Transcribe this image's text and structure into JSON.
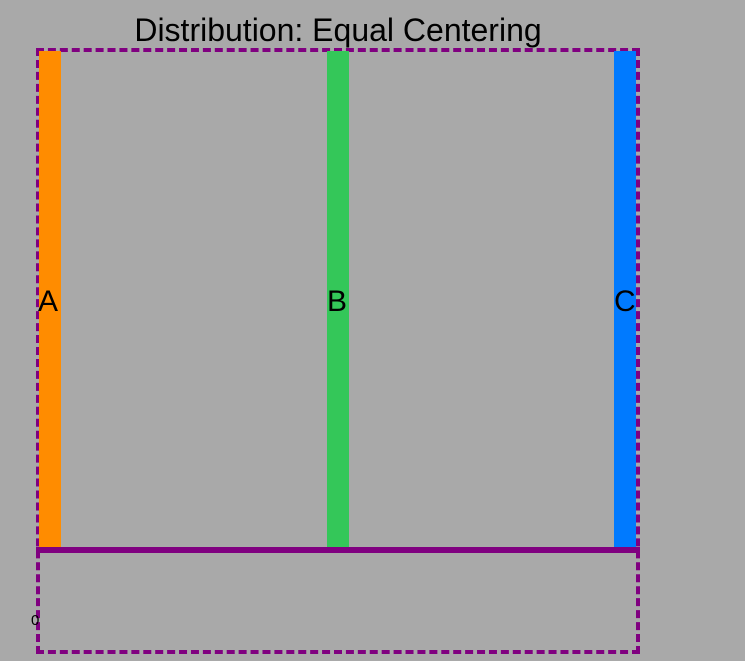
{
  "title": "Distribution: Equal Centering",
  "colors": {
    "background": "#a9a9a9",
    "frame": "#800080",
    "bar_a": "#ff8c00",
    "bar_b": "#34c759",
    "bar_c": "#007aff"
  },
  "bars": [
    {
      "label": "A",
      "color": "#ff8c00"
    },
    {
      "label": "B",
      "color": "#34c759"
    },
    {
      "label": "C",
      "color": "#007aff"
    }
  ],
  "axis": {
    "tick": "0"
  }
}
